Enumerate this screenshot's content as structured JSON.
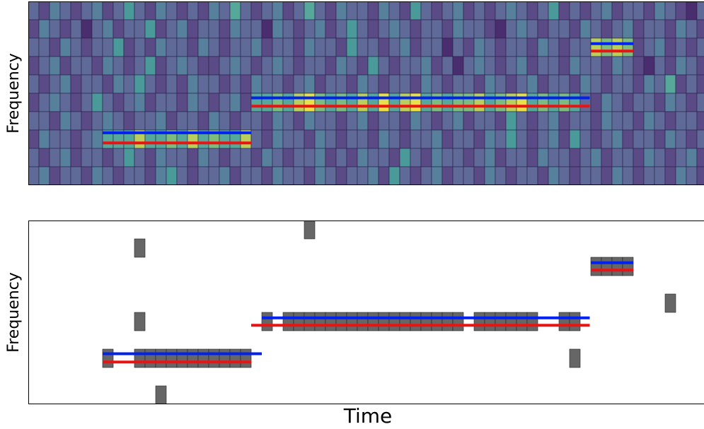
{
  "chart_data": [
    {
      "type": "heatmap",
      "ylabel": "Frequency",
      "colorscale": [
        "#3b1f5e",
        "#4a2d6e",
        "#5a4a86",
        "#5f6a98",
        "#56809c",
        "#4a9a9a",
        "#55a89a",
        "#7cbc7e",
        "#b8cf5e",
        "#e6e04a"
      ],
      "values": [
        [
          3,
          2,
          4,
          3,
          2,
          3,
          4,
          2,
          3,
          5,
          3,
          2,
          4,
          3,
          2,
          3,
          2,
          4,
          3,
          6,
          3,
          2,
          3,
          4,
          2,
          3,
          6,
          3,
          2,
          4,
          3,
          3,
          2,
          4,
          3,
          2,
          5,
          3,
          2,
          3,
          4,
          2,
          3,
          2,
          3,
          4,
          3,
          2,
          3,
          5,
          2,
          3,
          2,
          3,
          4,
          2,
          3,
          3,
          2,
          4,
          3,
          2,
          1,
          3
        ],
        [
          2,
          4,
          3,
          2,
          3,
          1,
          3,
          4,
          2,
          3,
          3,
          5,
          2,
          3,
          4,
          2,
          3,
          3,
          2,
          4,
          3,
          3,
          1,
          4,
          3,
          2,
          3,
          4,
          2,
          3,
          5,
          3,
          2,
          3,
          4,
          3,
          2,
          3,
          3,
          2,
          4,
          3,
          3,
          2,
          1,
          3,
          4,
          3,
          2,
          3,
          3,
          2,
          4,
          3,
          2,
          3,
          4,
          2,
          3,
          3,
          2,
          4,
          3,
          2
        ],
        [
          3,
          3,
          2,
          4,
          3,
          2,
          3,
          3,
          5,
          2,
          3,
          2,
          4,
          3,
          3,
          2,
          4,
          3,
          2,
          3,
          3,
          4,
          2,
          3,
          3,
          2,
          4,
          3,
          3,
          2,
          5,
          3,
          3,
          2,
          3,
          4,
          2,
          3,
          3,
          1,
          3,
          2,
          4,
          3,
          2,
          3,
          3,
          2,
          4,
          3,
          2,
          3,
          3,
          8,
          7,
          8,
          7,
          2,
          3,
          4,
          2,
          3,
          2,
          3
        ],
        [
          2,
          3,
          4,
          2,
          3,
          3,
          2,
          4,
          3,
          2,
          3,
          5,
          2,
          3,
          4,
          3,
          2,
          2,
          3,
          4,
          3,
          2,
          3,
          4,
          3,
          2,
          3,
          3,
          2,
          4,
          3,
          2,
          5,
          3,
          2,
          3,
          3,
          4,
          2,
          3,
          1,
          3,
          4,
          3,
          2,
          3,
          4,
          2,
          3,
          3,
          2,
          4,
          3,
          3,
          2,
          4,
          3,
          2,
          1,
          3,
          2,
          4,
          3,
          2
        ],
        [
          3,
          2,
          3,
          4,
          2,
          3,
          3,
          2,
          4,
          3,
          5,
          3,
          2,
          3,
          2,
          4,
          3,
          3,
          2,
          3,
          2,
          4,
          3,
          3,
          2,
          3,
          4,
          2,
          3,
          3,
          2,
          4,
          3,
          2,
          3,
          3,
          2,
          4,
          3,
          2,
          3,
          3,
          2,
          4,
          3,
          2,
          3,
          4,
          2,
          3,
          3,
          2,
          4,
          3,
          2,
          3,
          3,
          2,
          4,
          3,
          6,
          2,
          3,
          2
        ],
        [
          2,
          3,
          4,
          3,
          2,
          3,
          5,
          3,
          2,
          3,
          4,
          2,
          3,
          3,
          2,
          4,
          3,
          2,
          3,
          4,
          2,
          6,
          6,
          7,
          6,
          8,
          9,
          7,
          6,
          7,
          6,
          8,
          6,
          9,
          6,
          8,
          9,
          6,
          7,
          6,
          7,
          7,
          8,
          6,
          7,
          8,
          9,
          6,
          7,
          6,
          7,
          6,
          3,
          2,
          4,
          3,
          2,
          3,
          3,
          2,
          4,
          3,
          2,
          3
        ],
        [
          3,
          3,
          2,
          4,
          3,
          2,
          3,
          4,
          3,
          2,
          3,
          3,
          4,
          2,
          3,
          3,
          2,
          4,
          3,
          2,
          3,
          3,
          2,
          4,
          3,
          2,
          4,
          3,
          3,
          2,
          3,
          4,
          2,
          3,
          3,
          2,
          4,
          3,
          2,
          3,
          4,
          2,
          3,
          3,
          2,
          5,
          3,
          2,
          3,
          4,
          2,
          3,
          3,
          2,
          4,
          3,
          3,
          2,
          4,
          3,
          2,
          3,
          3,
          2
        ],
        [
          2,
          4,
          3,
          3,
          2,
          3,
          4,
          6,
          6,
          6,
          8,
          6,
          6,
          7,
          6,
          8,
          6,
          7,
          6,
          6,
          8,
          3,
          2,
          4,
          3,
          3,
          2,
          4,
          3,
          2,
          3,
          3,
          2,
          4,
          3,
          2,
          3,
          3,
          4,
          2,
          3,
          3,
          2,
          4,
          3,
          5,
          3,
          2,
          3,
          4,
          2,
          5,
          3,
          2,
          3,
          4,
          2,
          3,
          3,
          2,
          4,
          3,
          2,
          3
        ],
        [
          3,
          2,
          3,
          4,
          2,
          3,
          3,
          2,
          3,
          5,
          3,
          2,
          4,
          3,
          3,
          2,
          4,
          3,
          2,
          3,
          3,
          2,
          4,
          3,
          2,
          3,
          3,
          4,
          2,
          3,
          2,
          4,
          3,
          3,
          2,
          5,
          3,
          2,
          4,
          3,
          3,
          2,
          3,
          4,
          2,
          3,
          3,
          2,
          4,
          3,
          3,
          2,
          3,
          4,
          2,
          3,
          3,
          2,
          4,
          3,
          2,
          3,
          4,
          2
        ],
        [
          3,
          4,
          2,
          3,
          3,
          2,
          4,
          3,
          2,
          3,
          3,
          2,
          4,
          5,
          3,
          2,
          3,
          3,
          4,
          2,
          3,
          3,
          2,
          4,
          3,
          3,
          2,
          4,
          3,
          2,
          3,
          3,
          4,
          2,
          5,
          3,
          2,
          3,
          4,
          2,
          3,
          3,
          2,
          4,
          3,
          2,
          3,
          3,
          2,
          4,
          3,
          2,
          3,
          3,
          2,
          4,
          3,
          2,
          3,
          3,
          2,
          4,
          3,
          2
        ]
      ],
      "tracks": [
        {
          "color": "#0022ee",
          "segments": [
            [
              7,
              21,
              7.15
            ],
            [
              21,
              52.9,
              5.25
            ],
            [
              53,
              57,
              2.3
            ]
          ]
        },
        {
          "color": "#ee1111",
          "segments": [
            [
              7,
              21,
              7.7
            ],
            [
              21,
              52.9,
              5.7
            ],
            [
              53,
              57,
              2.7
            ]
          ]
        }
      ]
    },
    {
      "type": "detections",
      "ylabel": "Frequency",
      "xlabel": "Time",
      "color": "#666666",
      "cells": [
        [
          7,
          7
        ],
        [
          10,
          7
        ],
        [
          11,
          7
        ],
        [
          12,
          7
        ],
        [
          13,
          7
        ],
        [
          14,
          7
        ],
        [
          15,
          7
        ],
        [
          16,
          7
        ],
        [
          17,
          7
        ],
        [
          18,
          7
        ],
        [
          19,
          7
        ],
        [
          20,
          7
        ],
        [
          10,
          1
        ],
        [
          10,
          5
        ],
        [
          12,
          9
        ],
        [
          22,
          5
        ],
        [
          24,
          5
        ],
        [
          25,
          5
        ],
        [
          26,
          5
        ],
        [
          27,
          5
        ],
        [
          28,
          5
        ],
        [
          29,
          5
        ],
        [
          30,
          5
        ],
        [
          31,
          5
        ],
        [
          32,
          5
        ],
        [
          33,
          5
        ],
        [
          34,
          5
        ],
        [
          35,
          5
        ],
        [
          36,
          5
        ],
        [
          37,
          5
        ],
        [
          38,
          5
        ],
        [
          39,
          5
        ],
        [
          40,
          5
        ],
        [
          42,
          5
        ],
        [
          43,
          5
        ],
        [
          44,
          5
        ],
        [
          45,
          5
        ],
        [
          46,
          5
        ],
        [
          47,
          5
        ],
        [
          50,
          5
        ],
        [
          51,
          5
        ],
        [
          26,
          0
        ],
        [
          51,
          7
        ],
        [
          53,
          2
        ],
        [
          54,
          2
        ],
        [
          55,
          2
        ],
        [
          56,
          2
        ],
        [
          60,
          4
        ]
      ],
      "tracks": [
        {
          "color": "#0022ee",
          "segments": [
            [
              7,
              22,
              7.25
            ],
            [
              22,
              52.9,
              5.3
            ],
            [
              53,
              57,
              2.3
            ]
          ]
        },
        {
          "color": "#ee1111",
          "segments": [
            [
              7,
              21,
              7.7
            ],
            [
              21,
              52.9,
              5.7
            ],
            [
              53,
              57,
              2.7
            ]
          ]
        }
      ]
    }
  ]
}
